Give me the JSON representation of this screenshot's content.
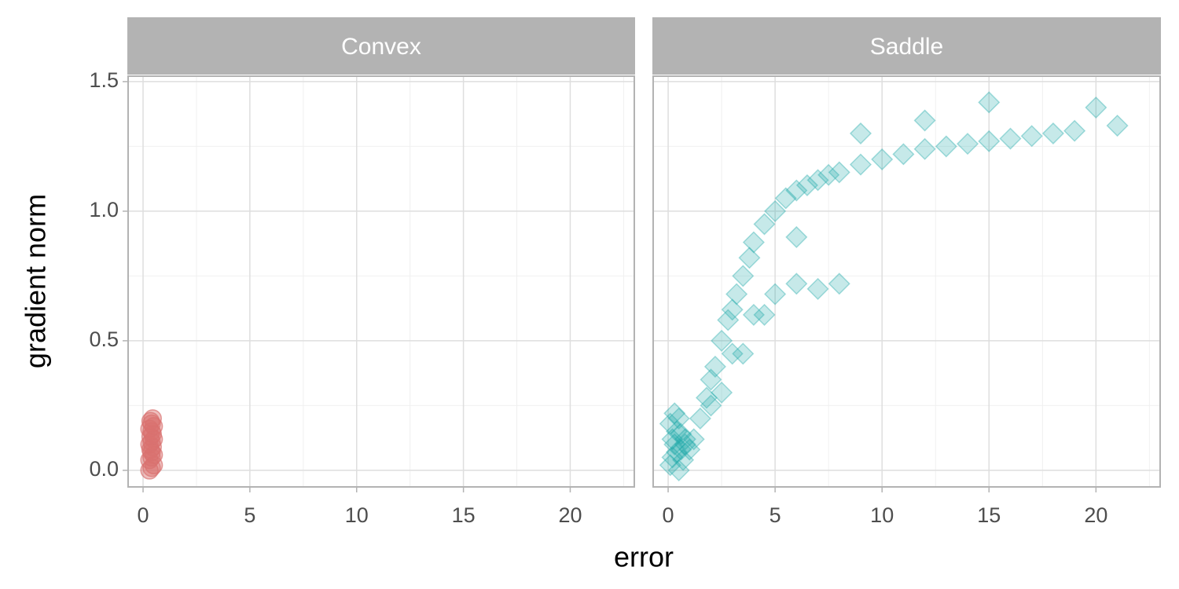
{
  "xlabel": "error",
  "ylabel": "gradient norm",
  "chart_data": [
    {
      "type": "scatter",
      "title": "Convex",
      "color": "#d9716f",
      "marker": "circle",
      "opacity": 0.45,
      "x": [
        0.3,
        0.4,
        0.5,
        0.3,
        0.4,
        0.5,
        0.35,
        0.45,
        0.3,
        0.4,
        0.5,
        0.35,
        0.45,
        0.4,
        0.3,
        0.5,
        0.4,
        0.35,
        0.45,
        0.4
      ],
      "y": [
        0.0,
        0.01,
        0.02,
        0.04,
        0.05,
        0.06,
        0.08,
        0.09,
        0.1,
        0.11,
        0.12,
        0.13,
        0.14,
        0.15,
        0.16,
        0.17,
        0.18,
        0.19,
        0.2,
        0.07
      ],
      "xlim": [
        -0.7,
        23.0
      ],
      "ylim": [
        -0.064,
        1.521
      ],
      "xticks": [
        0,
        5,
        10,
        15,
        20
      ],
      "yticks": [
        {
          "value": 0,
          "label": "0.0"
        },
        {
          "value": 0.5,
          "label": "0.5"
        },
        {
          "value": 1,
          "label": "1.0"
        },
        {
          "value": 1.5,
          "label": "1.5"
        }
      ],
      "xminor": [
        2.5,
        7.5,
        12.5,
        17.5,
        22.5
      ],
      "yminor": [
        0.25,
        0.75,
        1.25
      ],
      "grid": true
    },
    {
      "type": "scatter",
      "title": "Saddle",
      "color": "#1aa8a8",
      "marker": "diamond",
      "opacity": 0.25,
      "x": [
        0.1,
        0.2,
        0.3,
        0.4,
        0.5,
        0.6,
        0.8,
        0.1,
        0.3,
        0.5,
        0.7,
        0.2,
        0.4,
        0.6,
        0.8,
        1.0,
        1.2,
        1.5,
        1.8,
        2.0,
        2.2,
        2.5,
        2.8,
        3.0,
        3.2,
        3.5,
        3.8,
        4.0,
        4.5,
        5.0,
        5.5,
        6.0,
        6.5,
        7.0,
        7.5,
        8.0,
        9.0,
        10.0,
        11.0,
        12.0,
        13.0,
        14.0,
        15.0,
        16.0,
        17.0,
        18.0,
        19.0,
        20.0,
        21.0,
        3.0,
        4.0,
        5.0,
        6.0,
        7.0,
        8.0,
        2.0,
        2.5,
        3.5,
        4.5,
        6.0,
        9.0,
        12.0,
        15.0
      ],
      "y": [
        0.02,
        0.05,
        0.1,
        0.15,
        0.2,
        0.08,
        0.12,
        0.18,
        0.22,
        0.0,
        0.04,
        0.12,
        0.07,
        0.14,
        0.1,
        0.08,
        0.12,
        0.2,
        0.28,
        0.35,
        0.4,
        0.5,
        0.58,
        0.62,
        0.68,
        0.75,
        0.82,
        0.88,
        0.95,
        1.0,
        1.05,
        1.08,
        1.1,
        1.12,
        1.14,
        1.15,
        1.18,
        1.2,
        1.22,
        1.24,
        1.25,
        1.26,
        1.27,
        1.28,
        1.29,
        1.3,
        1.31,
        1.4,
        1.33,
        0.45,
        0.6,
        0.68,
        0.72,
        0.7,
        0.72,
        0.25,
        0.3,
        0.45,
        0.6,
        0.9,
        1.3,
        1.35,
        1.42
      ],
      "xlim": [
        -0.7,
        23.0
      ],
      "ylim": [
        -0.064,
        1.521
      ],
      "xticks": [
        0,
        5,
        10,
        15,
        20
      ],
      "yticks": [
        {
          "value": 0,
          "label": "0.0"
        },
        {
          "value": 0.5,
          "label": "0.5"
        },
        {
          "value": 1,
          "label": "1.0"
        },
        {
          "value": 1.5,
          "label": "1.5"
        }
      ],
      "xminor": [
        2.5,
        7.5,
        12.5,
        17.5,
        22.5
      ],
      "yminor": [
        0.25,
        0.75,
        1.25
      ],
      "grid": true
    }
  ]
}
